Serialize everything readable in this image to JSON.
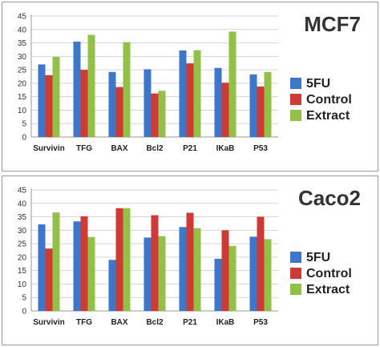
{
  "chart_data": [
    {
      "type": "bar",
      "title": "MCF7",
      "categories": [
        "Survivin",
        "TFG",
        "BAX",
        "Bcl2",
        "P21",
        "IKaB",
        "P53"
      ],
      "series": [
        {
          "name": "5FU",
          "color": "#3d77c9",
          "values": [
            27,
            35.5,
            24.2,
            25.2,
            32.2,
            25.7,
            23.3
          ]
        },
        {
          "name": "Control",
          "color": "#cf3a34",
          "values": [
            23,
            25,
            18.6,
            16.2,
            27.4,
            20.2,
            18.8
          ]
        },
        {
          "name": "Extract",
          "color": "#93c147",
          "values": [
            29.8,
            38,
            35.3,
            17.2,
            32.3,
            39.2,
            24.2
          ]
        }
      ],
      "ylim": [
        0,
        45
      ],
      "yticks": [
        0,
        5,
        10,
        15,
        20,
        25,
        30,
        35,
        40,
        45
      ],
      "grid": true,
      "legend_position": "right"
    },
    {
      "type": "bar",
      "title": "Caco2",
      "categories": [
        "Survivin",
        "TFG",
        "BAX",
        "Bcl2",
        "P21",
        "IKaB",
        "P53"
      ],
      "series": [
        {
          "name": "5FU",
          "color": "#3d77c9",
          "values": [
            32.2,
            33.3,
            19,
            27.3,
            31.2,
            19.4,
            27.6
          ]
        },
        {
          "name": "Control",
          "color": "#cf3a34",
          "values": [
            23.2,
            35.2,
            38.2,
            35.6,
            36.5,
            30,
            35
          ]
        },
        {
          "name": "Extract",
          "color": "#93c147",
          "values": [
            36.6,
            27.5,
            38.2,
            27.8,
            30.8,
            24.2,
            26.7
          ]
        }
      ],
      "ylim": [
        0,
        45
      ],
      "yticks": [
        0,
        5,
        10,
        15,
        20,
        25,
        30,
        35,
        40,
        45
      ],
      "grid": true,
      "legend_position": "right"
    }
  ]
}
